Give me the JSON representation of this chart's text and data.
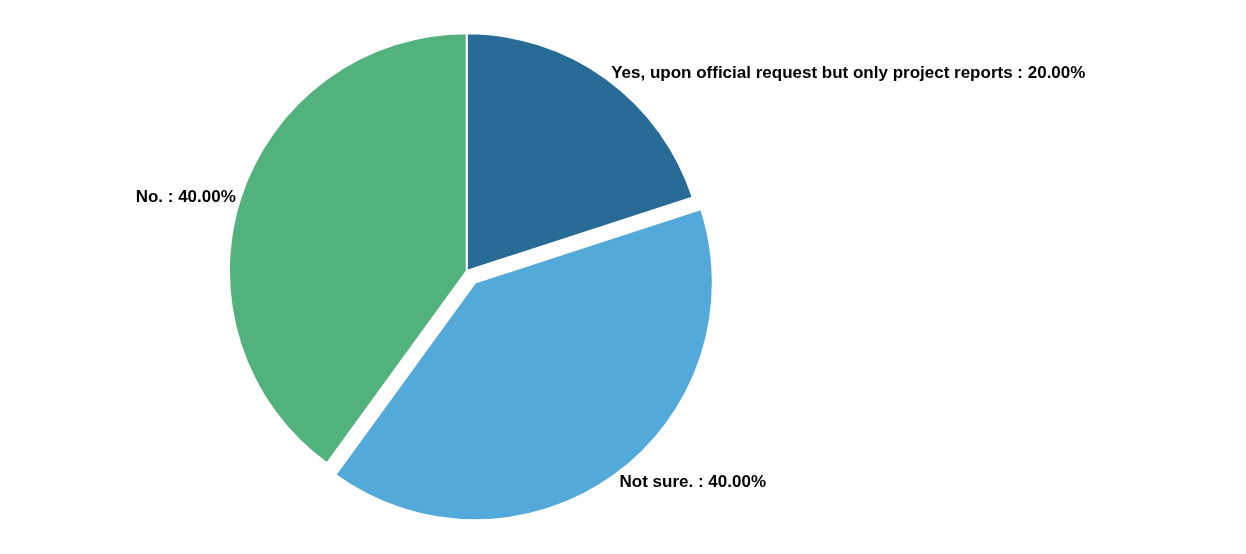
{
  "chart_data": {
    "type": "pie",
    "categories": [
      "Yes, upon official request but only project reports",
      "Not sure.",
      "No."
    ],
    "values": [
      20,
      40,
      40
    ],
    "value_labels": [
      "20.00%",
      "40.00%",
      "40.00%"
    ],
    "colors": [
      "#286b96",
      "#53a9d9",
      "#52b27e"
    ],
    "legend": false
  }
}
